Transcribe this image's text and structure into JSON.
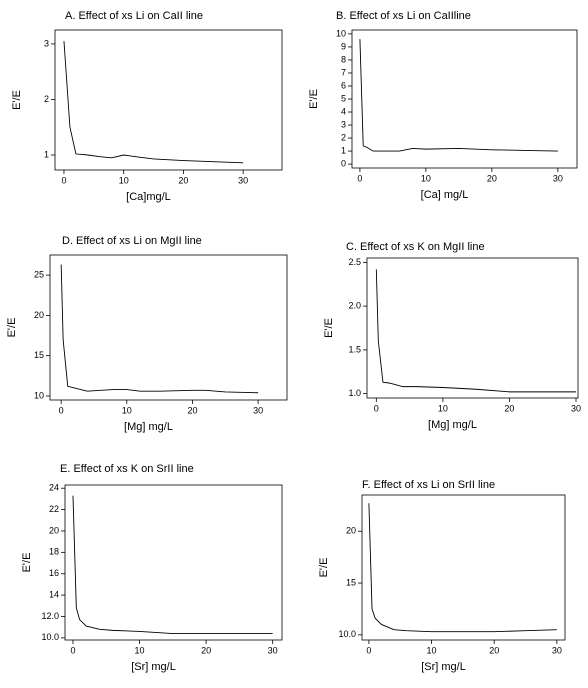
{
  "chart_data": [
    {
      "type": "line",
      "title": "A. Effect of xs Li on CaII line",
      "xlabel": "[Ca]mg/L",
      "ylabel": "E'/E",
      "x": [
        0,
        1,
        2,
        4,
        6,
        8,
        10,
        12,
        15,
        20,
        25,
        30
      ],
      "values": [
        3.05,
        1.5,
        1.02,
        1.0,
        0.97,
        0.95,
        1.0,
        0.97,
        0.93,
        0.9,
        0.88,
        0.86
      ],
      "color": "#000000",
      "xlim": [
        -1.5,
        36.5
      ],
      "ylim": [
        0.73,
        3.25
      ],
      "xticks": [
        0,
        10,
        20,
        30
      ],
      "yticks": [
        1,
        2,
        3
      ],
      "grid": false
    },
    {
      "type": "line",
      "title": "B. Effect of xs Li on CaIIline",
      "xlabel": "[Ca] mg/L",
      "ylabel": "E'/E",
      "x": [
        0,
        0.5,
        1,
        2,
        4,
        6,
        8,
        10,
        15,
        20,
        25,
        30
      ],
      "values": [
        9.6,
        1.4,
        1.3,
        1.0,
        1.0,
        1.0,
        1.2,
        1.15,
        1.2,
        1.1,
        1.05,
        1.0
      ],
      "color": "#000000",
      "xlim": [
        -1.2,
        32.9
      ],
      "ylim": [
        -0.3,
        10.3
      ],
      "xticks": [
        0,
        10,
        20,
        30
      ],
      "yticks": [
        0,
        1,
        2,
        3,
        4,
        5,
        6,
        7,
        8,
        9,
        10
      ],
      "grid": false
    },
    {
      "type": "line",
      "title": "D. Effect of xs Li on MgII line",
      "xlabel": "[Mg] mg/L",
      "ylabel": "E'/E",
      "x": [
        0,
        0.3,
        1,
        2,
        4,
        6,
        8,
        10,
        12,
        15,
        20,
        22,
        25,
        30
      ],
      "values": [
        26.3,
        17,
        11.2,
        11.0,
        10.6,
        10.7,
        10.8,
        10.8,
        10.6,
        10.6,
        10.7,
        10.7,
        10.5,
        10.4
      ],
      "color": "#000000",
      "xlim": [
        -1.7,
        34.4
      ],
      "ylim": [
        9.5,
        27.5
      ],
      "xticks": [
        0,
        10,
        20,
        30
      ],
      "yticks": [
        10,
        15,
        20,
        25
      ],
      "grid": false
    },
    {
      "type": "line",
      "title": "C. Effect of xs K on MgII line",
      "xlabel": "[Mg] mg/L",
      "ylabel": "E'/E",
      "x": [
        0,
        0.3,
        1,
        2,
        4,
        6,
        10,
        15,
        20,
        25,
        30
      ],
      "values": [
        2.42,
        1.6,
        1.13,
        1.12,
        1.08,
        1.08,
        1.07,
        1.05,
        1.02,
        1.02,
        1.02
      ],
      "color": "#000000",
      "xlim": [
        -1.4,
        30.3
      ],
      "ylim": [
        0.95,
        2.55
      ],
      "xticks": [
        0,
        10,
        20,
        30
      ],
      "yticks": [
        {
          "value": 1,
          "label": "1.0"
        },
        1.5,
        {
          "value": 2,
          "label": "2.0"
        },
        2.5
      ],
      "grid": false
    },
    {
      "type": "line",
      "title": "E. Effect of xs K on SrII line",
      "xlabel": "[Sr] mg/L",
      "ylabel": "E'/E",
      "x": [
        0,
        0.5,
        1,
        2,
        4,
        6,
        10,
        15,
        20,
        25,
        30
      ],
      "values": [
        23.3,
        12.8,
        11.7,
        11.1,
        10.8,
        10.7,
        10.6,
        10.4,
        10.4,
        10.4,
        10.4
      ],
      "color": "#000000",
      "xlim": [
        -1.2,
        31.4
      ],
      "ylim": [
        9.8,
        24.3
      ],
      "xticks": [
        0,
        10,
        20,
        30
      ],
      "yticks": [
        {
          "value": 10,
          "label": "10.0"
        },
        {
          "value": 12,
          "label": "12.0"
        },
        14,
        16,
        18,
        20,
        22,
        24
      ],
      "grid": false
    },
    {
      "type": "line",
      "title": "F. Effect of xs Li on SrII line",
      "xlabel": "[Sr] mg/L",
      "ylabel": "E'/E",
      "x": [
        0,
        0.5,
        1,
        2,
        4,
        6,
        10,
        15,
        20,
        25,
        30
      ],
      "values": [
        22.7,
        12.5,
        11.6,
        11.0,
        10.5,
        10.4,
        10.3,
        10.3,
        10.3,
        10.4,
        10.5
      ],
      "color": "#000000",
      "xlim": [
        -1.1,
        31.3
      ],
      "ylim": [
        9.5,
        23.5
      ],
      "xticks": [
        0,
        10,
        20,
        30
      ],
      "yticks": [
        {
          "value": 10,
          "label": "10.0"
        },
        15,
        20
      ],
      "grid": false
    }
  ]
}
